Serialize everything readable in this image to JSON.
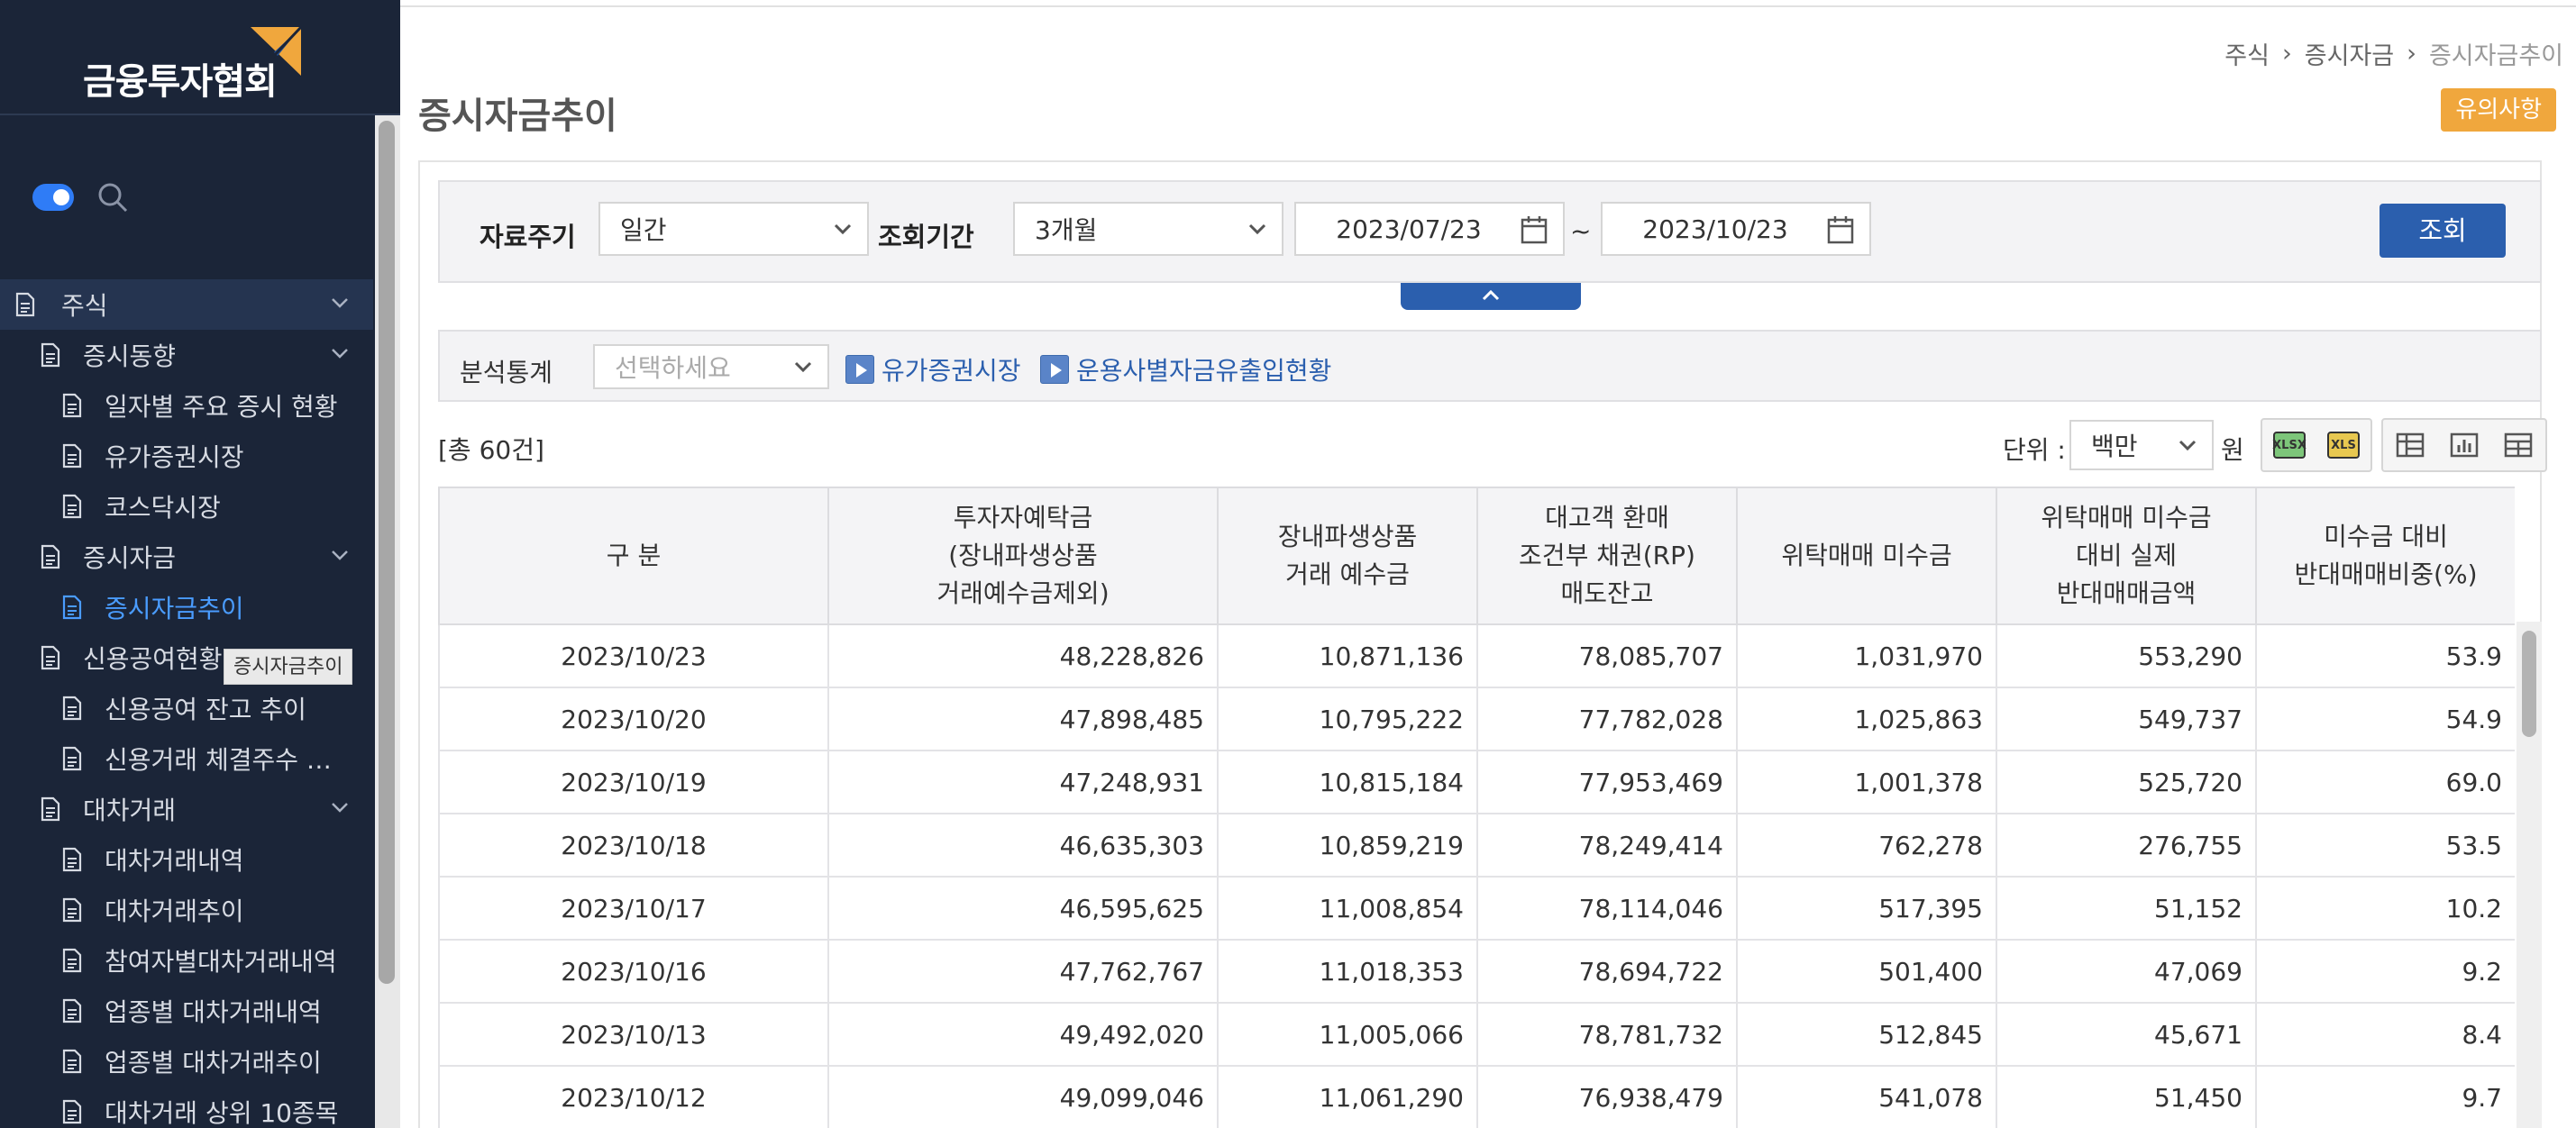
{
  "brand": {
    "name": "금융투자협회"
  },
  "sidebar": {
    "items": [
      {
        "label": "주식",
        "level": 0,
        "expanded": true
      },
      {
        "label": "증시동향",
        "level": 1,
        "expanded": true
      },
      {
        "label": "일자별 주요 증시 현황",
        "level": 2
      },
      {
        "label": "유가증권시장",
        "level": 2
      },
      {
        "label": "코스닥시장",
        "level": 2
      },
      {
        "label": "증시자금",
        "level": 1,
        "expanded": true
      },
      {
        "label": "증시자금추이",
        "level": 2,
        "active": true
      },
      {
        "label": "신용공여현황",
        "level": 1
      },
      {
        "label": "신용공여 잔고 추이",
        "level": 2
      },
      {
        "label": "신용거래 체결주수 …",
        "level": 2
      },
      {
        "label": "대차거래",
        "level": 1,
        "expanded": true
      },
      {
        "label": "대차거래내역",
        "level": 2
      },
      {
        "label": "대차거래추이",
        "level": 2
      },
      {
        "label": "참여자별대차거래내역",
        "level": 2
      },
      {
        "label": "업종별 대차거래내역",
        "level": 2
      },
      {
        "label": "업종별 대차거래추이",
        "level": 2
      },
      {
        "label": "대차거래 상위 10종목",
        "level": 2
      }
    ],
    "tooltip": "증시자금추이"
  },
  "breadcrumb": [
    "주식",
    "증시자금",
    "증시자금추이"
  ],
  "page": {
    "title": "증시자금추이",
    "notice_label": "유의사항"
  },
  "filter": {
    "period_label": "자료주기",
    "period_value": "일간",
    "range_label": "조회기간",
    "range_value": "3개월",
    "date_from": "2023/07/23",
    "date_to": "2023/10/23",
    "tilde": "~",
    "search_label": "조회"
  },
  "analysis": {
    "label": "분석통계",
    "select_placeholder": "선택하세요",
    "links": [
      "유가증권시장",
      "운용사별자금유출입현황"
    ]
  },
  "summary": {
    "total": "[총 60건]",
    "unit_label": "단위 :",
    "unit_value": "백만",
    "unit_suffix": "원"
  },
  "toolbar": {
    "xlsx_label": "XLSX",
    "xls_label": "XLS"
  },
  "table": {
    "headers": [
      "구 분",
      "투자자예탁금\n(장내파생상품\n거래예수금제외)",
      "장내파생상품\n거래 예수금",
      "대고객 환매\n조건부 채권(RP)\n매도잔고",
      "위탁매매 미수금",
      "위탁매매 미수금\n대비 실제\n반대매매금액",
      "미수금 대비\n반대매매비중(%)"
    ],
    "rows": [
      [
        "2023/10/23",
        "48,228,826",
        "10,871,136",
        "78,085,707",
        "1,031,970",
        "553,290",
        "53.9"
      ],
      [
        "2023/10/20",
        "47,898,485",
        "10,795,222",
        "77,782,028",
        "1,025,863",
        "549,737",
        "54.9"
      ],
      [
        "2023/10/19",
        "47,248,931",
        "10,815,184",
        "77,953,469",
        "1,001,378",
        "525,720",
        "69.0"
      ],
      [
        "2023/10/18",
        "46,635,303",
        "10,859,219",
        "78,249,414",
        "762,278",
        "276,755",
        "53.5"
      ],
      [
        "2023/10/17",
        "46,595,625",
        "11,008,854",
        "78,114,046",
        "517,395",
        "51,152",
        "10.2"
      ],
      [
        "2023/10/16",
        "47,762,767",
        "11,018,353",
        "78,694,722",
        "501,400",
        "47,069",
        "9.2"
      ],
      [
        "2023/10/13",
        "49,492,020",
        "11,005,066",
        "78,781,732",
        "512,845",
        "45,671",
        "8.4"
      ],
      [
        "2023/10/12",
        "49,099,046",
        "11,061,290",
        "76,938,479",
        "541,078",
        "51,450",
        "9.7"
      ]
    ]
  },
  "colors": {
    "sidebar_bg": "#1b2538",
    "accent": "#2b5fae",
    "notice": "#f0a73d",
    "active_link": "#4a9cff"
  }
}
